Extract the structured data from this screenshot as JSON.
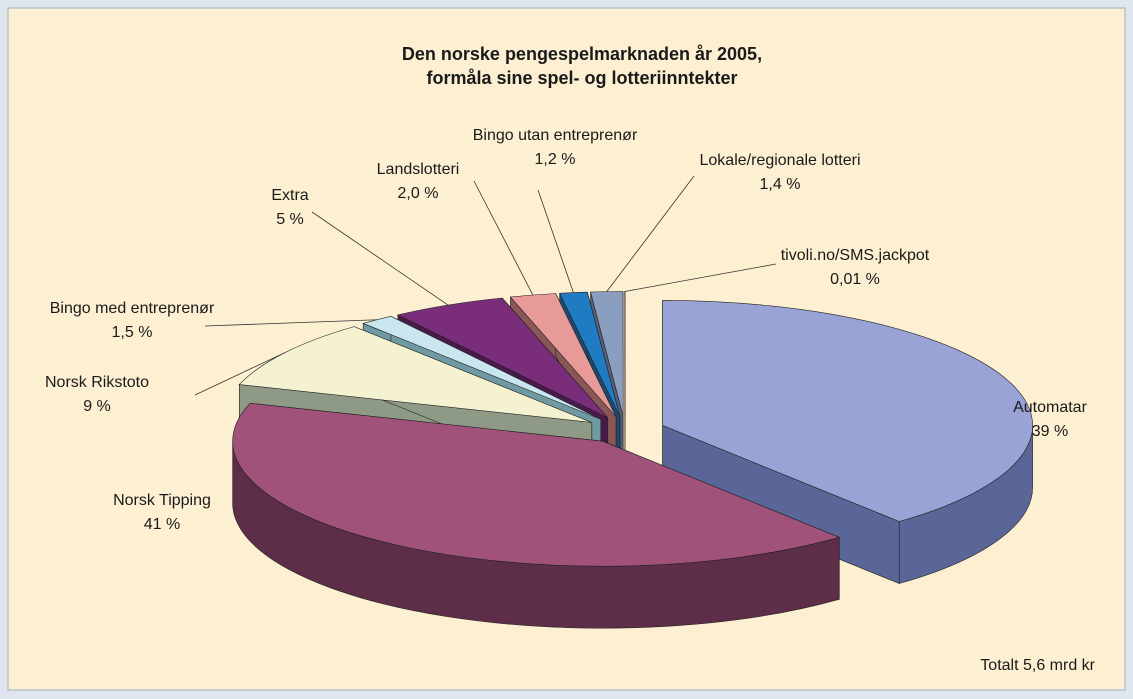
{
  "chart_data": {
    "type": "pie",
    "title": [
      "Den norske pengespelmarknaden år 2005,",
      "formåla sine spel- og lotteriinntekter"
    ],
    "categories": [
      "Automatar",
      "Norsk Tipping",
      "Norsk Rikstoto",
      "Bingo med entreprenør",
      "Extra",
      "Landslotteri",
      "Bingo utan entreprenør",
      "Lokale/regionale lotteri",
      "tivoli.no/SMS.jackpot"
    ],
    "values": [
      39,
      41,
      9,
      1.5,
      5,
      2.0,
      1.2,
      1.4,
      0.01
    ],
    "value_labels": [
      "39 %",
      "41 %",
      "9 %",
      "1,5 %",
      "5 %",
      "2,0 %",
      "1,2 %",
      "1,4 %",
      "0,01 %"
    ],
    "colors": [
      "#9aa3d6",
      "#a0527a",
      "#f5f2d2",
      "#c9e6f0",
      "#7a2d7a",
      "#e89a98",
      "#1f7cc2",
      "#8c9ec0",
      "#c8d0f2"
    ],
    "side_colors": [
      "#5b6698",
      "#5e2d48",
      "#8e9a86",
      "#6f9aa2",
      "#4a1a4a",
      "#8a5656",
      "#1a4a72",
      "#56607a",
      "#7880a0"
    ],
    "annotation": "Totalt 5,6 mrd kr"
  }
}
